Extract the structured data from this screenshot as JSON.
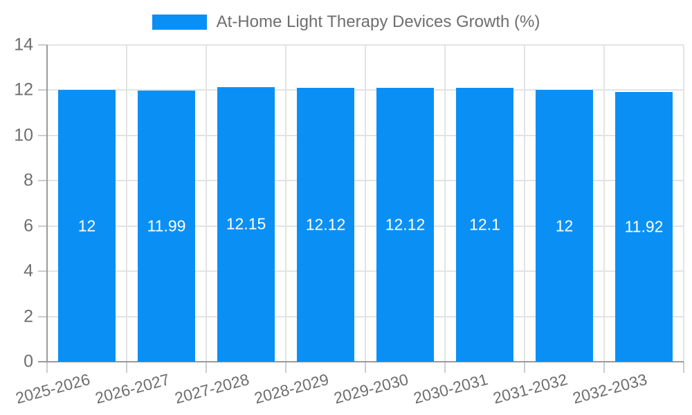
{
  "chart_data": {
    "type": "bar",
    "title": "At-Home Light Therapy Devices Growth (%)",
    "categories": [
      "2025-2026",
      "2026-2027",
      "2027-2028",
      "2028-2029",
      "2029-2030",
      "2030-2031",
      "2031-2032",
      "2032-2033"
    ],
    "values": [
      12,
      11.99,
      12.15,
      12.12,
      12.12,
      12.1,
      12,
      11.92
    ],
    "value_labels": [
      "12",
      "11.99",
      "12.15",
      "12.12",
      "12.12",
      "12.1",
      "12",
      "11.92"
    ],
    "xlabel": "",
    "ylabel": "",
    "ylim": [
      0,
      14
    ],
    "yticks": [
      0,
      2,
      4,
      6,
      8,
      10,
      12,
      14
    ],
    "grid": true,
    "legend_position": "top-center",
    "colors": {
      "bar": "#0a90f5",
      "grid": "#e3e3e3",
      "axis": "#9a9a9a",
      "tick_mark": "#cccccc",
      "tick_label": "#6e6e6e",
      "value_label": "#ffffff",
      "background": "#ffffff"
    }
  }
}
